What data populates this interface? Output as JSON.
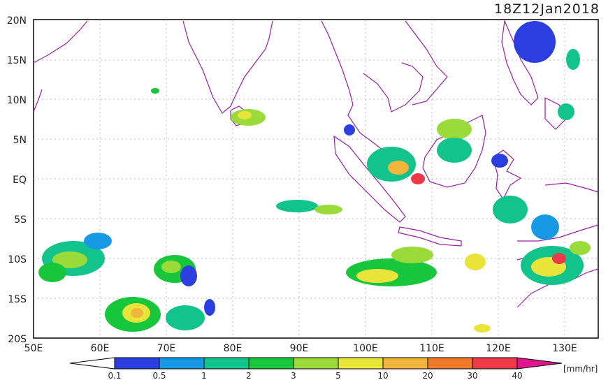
{
  "title": "18Z12Jan2018",
  "lat_labels": [
    "20N",
    "15N",
    "10N",
    "5N",
    "EQ",
    "5S",
    "10S",
    "15S",
    "20S"
  ],
  "lon_labels": [
    "50E",
    "60E",
    "70E",
    "80E",
    "90E",
    "100E",
    "110E",
    "120E",
    "130E"
  ],
  "colorbar": {
    "unit": "[mm/hr]",
    "tick_labels": [
      "0.1",
      "0.5",
      "1",
      "2",
      "3",
      "5",
      "10",
      "20",
      "30",
      "40"
    ],
    "colors": [
      "#2b3fe0",
      "#1799e6",
      "#12c48c",
      "#17c63a",
      "#9adb3a",
      "#e8e43a",
      "#f0b53a",
      "#f07a2a",
      "#ee3a48",
      "#e0158e"
    ]
  }
}
